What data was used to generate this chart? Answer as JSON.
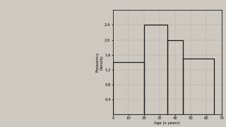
{
  "bars": [
    {
      "x_start": 0,
      "x_end": 20,
      "fd": 1.4
    },
    {
      "x_start": 20,
      "x_end": 35,
      "fd": 2.4
    },
    {
      "x_start": 35,
      "x_end": 45,
      "fd": 2.0
    },
    {
      "x_start": 45,
      "x_end": 65,
      "fd": 1.5
    }
  ],
  "xlim": [
    0,
    70
  ],
  "ylim": [
    0,
    2.8
  ],
  "xticks": [
    0,
    10,
    20,
    30,
    40,
    50,
    60,
    70
  ],
  "yticks": [
    0.4,
    0.8,
    1.2,
    1.6,
    2.0,
    2.4
  ],
  "xlabel": "Age (x years)",
  "ylabel": "Frequency\nDensity",
  "background_color": "#cdc9c0",
  "bar_facecolor": "none",
  "bar_edgecolor": "#1a1a1a",
  "grid_color": "#b5b0a6",
  "left_bg": "#cdc9c0"
}
